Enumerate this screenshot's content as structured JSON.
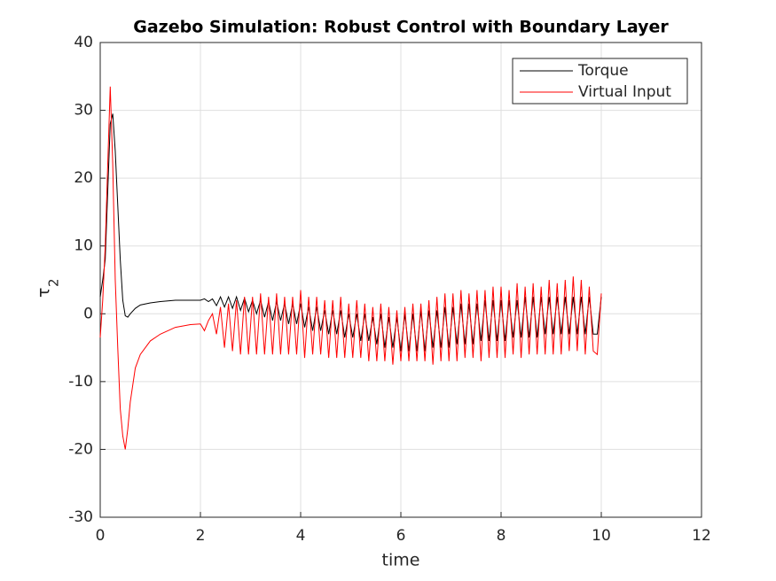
{
  "chart_data": {
    "type": "line",
    "title": "Gazebo Simulation: Robust Control with Boundary Layer",
    "xlabel": "time",
    "ylabel": {
      "symbol": "τ",
      "subscript": "2"
    },
    "x": [
      0,
      0.05,
      0.1,
      0.15,
      0.2,
      0.25,
      0.3,
      0.35,
      0.4,
      0.45,
      0.5,
      0.55,
      0.6,
      0.7,
      0.8,
      1.0,
      1.2,
      1.5,
      1.8,
      2.0,
      2.08,
      2.16,
      2.24,
      2.32,
      2.4,
      2.48,
      2.56,
      2.64,
      2.72,
      2.8,
      2.88,
      2.96,
      3.04,
      3.12,
      3.2,
      3.28,
      3.36,
      3.44,
      3.52,
      3.6,
      3.68,
      3.76,
      3.84,
      3.92,
      4,
      4.08,
      4.16,
      4.24,
      4.32,
      4.4,
      4.48,
      4.56,
      4.64,
      4.72,
      4.8,
      4.88,
      4.96,
      5.04,
      5.12,
      5.2,
      5.28,
      5.36,
      5.44,
      5.52,
      5.6,
      5.68,
      5.76,
      5.84,
      5.92,
      6,
      6.08,
      6.16,
      6.24,
      6.32,
      6.4,
      6.48,
      6.56,
      6.64,
      6.72,
      6.8,
      6.88,
      6.96,
      7.04,
      7.12,
      7.2,
      7.28,
      7.36,
      7.44,
      7.52,
      7.6,
      7.68,
      7.76,
      7.84,
      7.92,
      8,
      8.08,
      8.16,
      8.24,
      8.32,
      8.4,
      8.48,
      8.56,
      8.64,
      8.72,
      8.8,
      8.88,
      8.96,
      9.04,
      9.12,
      9.2,
      9.28,
      9.36,
      9.44,
      9.52,
      9.6,
      9.68,
      9.76,
      9.84,
      9.92,
      10
    ],
    "series": [
      {
        "name": "Torque",
        "color": "#000000",
        "values": [
          2.5,
          5,
          8,
          18,
          28,
          29.5,
          24,
          16,
          8,
          2,
          -0.3,
          -0.5,
          0,
          0.8,
          1.3,
          1.6,
          1.8,
          2,
          2,
          2,
          2.2,
          1.8,
          2.2,
          1.2,
          2.5,
          1,
          2.5,
          0.8,
          2.5,
          0.5,
          2.3,
          0.3,
          2,
          0,
          2,
          -0.5,
          1.8,
          -1,
          1.8,
          -1,
          1.5,
          -1.5,
          1.5,
          -1.5,
          1.5,
          -2,
          1,
          -2.5,
          1,
          -2.5,
          0.5,
          -3,
          0.5,
          -3,
          0.5,
          -3.5,
          0,
          -3.5,
          0,
          -4,
          0,
          -4,
          -0.5,
          -4.5,
          0,
          -5,
          -0.5,
          -5,
          -0.5,
          -5.5,
          0,
          -5.5,
          0,
          -5.5,
          0.5,
          -5.5,
          0.5,
          -5,
          0.5,
          -5,
          1,
          -5,
          1,
          -4.5,
          1.5,
          -4.5,
          1.5,
          -4.5,
          1.5,
          -4,
          2,
          -4,
          2,
          -4,
          2,
          -4,
          2,
          -3.5,
          2,
          -3.5,
          2.5,
          -3.5,
          2.5,
          -3.5,
          2.5,
          -3,
          2.5,
          -3,
          2.5,
          -3,
          2.5,
          -3,
          2.5,
          -3,
          2.5,
          -3,
          2.5,
          -3,
          -3,
          2.5
        ]
      },
      {
        "name": "Virtual Input",
        "color": "#ff0000",
        "values": [
          -3.5,
          2,
          10,
          22,
          33.5,
          22,
          5,
          -5,
          -14,
          -18,
          -20,
          -17,
          -13,
          -8,
          -6,
          -4,
          -3,
          -2,
          -1.6,
          -1.5,
          -2.5,
          -1,
          0,
          -3,
          1,
          -5,
          1.5,
          -5.5,
          2,
          -6,
          2.5,
          -6,
          2.5,
          -6,
          3,
          -6,
          2.5,
          -6,
          3,
          -6,
          2.5,
          -6,
          2.5,
          -6,
          3.5,
          -6.5,
          2.5,
          -6,
          2.5,
          -6,
          2,
          -6.5,
          2,
          -6.5,
          2.5,
          -6.5,
          1.5,
          -6.5,
          2,
          -6.5,
          1.5,
          -7,
          1,
          -7,
          1.5,
          -7,
          1,
          -7.5,
          0.5,
          -7,
          1,
          -7,
          1.5,
          -7,
          1.5,
          -7,
          2,
          -7.5,
          2.5,
          -7,
          3,
          -7,
          3,
          -7,
          3.5,
          -6.5,
          3,
          -6.5,
          3.5,
          -7,
          3.5,
          -6.5,
          4,
          -6.5,
          4,
          -6.5,
          3.5,
          -6,
          4.5,
          -6.5,
          4,
          -6,
          4.5,
          -6,
          4,
          -6,
          5,
          -6,
          4.5,
          -6,
          5,
          -5.5,
          5.5,
          -5.5,
          5,
          -6,
          4,
          -5.5,
          -6,
          3
        ]
      }
    ],
    "xlim": [
      0,
      12
    ],
    "xticks": [
      0,
      2,
      4,
      6,
      8,
      10,
      12
    ],
    "ylim": [
      -30,
      40
    ],
    "yticks": [
      -30,
      -20,
      -10,
      0,
      10,
      20,
      30,
      40
    ],
    "grid": true,
    "legend": "northeast"
  }
}
